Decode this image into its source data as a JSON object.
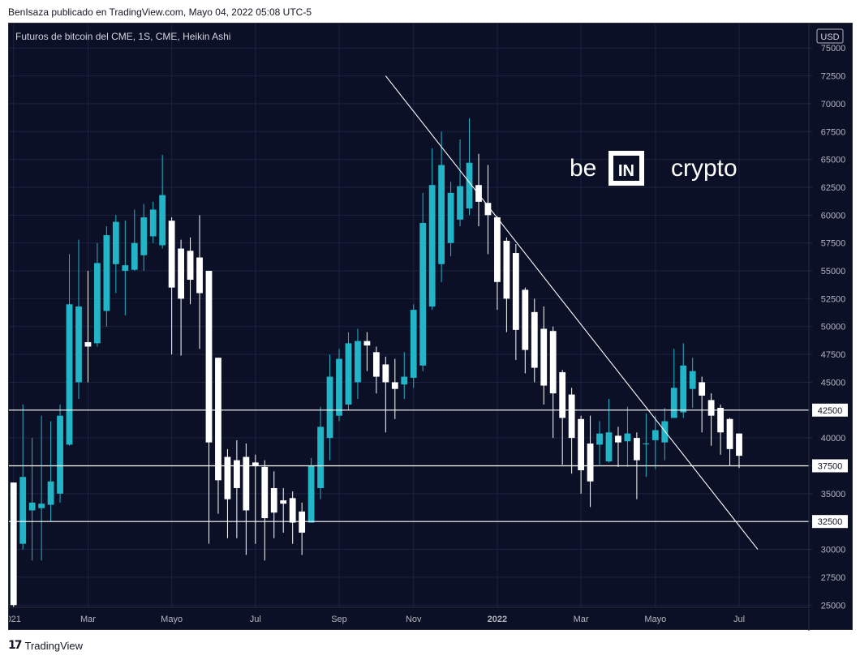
{
  "header": {
    "publish_line": "BenIsaza publicado en TradingView.com, Mayo 04, 2022 05:08 UTC-5"
  },
  "chart_title": "Futuros de bitcoin del CME, 1S, CME, Heikin Ashi",
  "watermark": {
    "left": "be",
    "middle": "IN",
    "right": "crypto"
  },
  "footer": {
    "brand": "TradingView",
    "icon": "tradingview-logo-icon"
  },
  "colors": {
    "background": "#0b1027",
    "up": "#22b5c8",
    "down": "#ffffff",
    "grid": "#1c2340",
    "axis_text": "#b2b5be",
    "line": "#ffffff"
  },
  "chart_data": {
    "type": "candlestick",
    "style": "Heikin Ashi",
    "currency": "USD",
    "y_ticks": [
      25000,
      27500,
      30000,
      32500,
      35000,
      37500,
      40000,
      42500,
      45000,
      47500,
      50000,
      52500,
      55000,
      57500,
      60000,
      62500,
      65000,
      67500,
      70000,
      72500,
      75000
    ],
    "y_tick_labels": [
      "25000",
      "27500",
      "30000",
      "32500",
      "35000",
      "37500",
      "40000",
      "42500",
      "45000",
      "47500",
      "50000",
      "52500",
      "55000",
      "57500",
      "60000",
      "62500",
      "65000",
      "67500",
      "70000",
      "72500",
      "75000"
    ],
    "ylim": [
      24800,
      77200
    ],
    "x_labels": [
      {
        "label": "021",
        "week": 0
      },
      {
        "label": "Mar",
        "week": 8
      },
      {
        "label": "Mayo",
        "week": 17
      },
      {
        "label": "Jul",
        "week": 26
      },
      {
        "label": "Sep",
        "week": 35
      },
      {
        "label": "Nov",
        "week": 43
      },
      {
        "label": "2022",
        "week": 52
      },
      {
        "label": "Mar",
        "week": 61
      },
      {
        "label": "Mayo",
        "week": 69
      },
      {
        "label": "Jul",
        "week": 78
      }
    ],
    "xlim": [
      -0.5,
      85.5
    ],
    "horizontal_lines": [
      {
        "price": 42500,
        "label": "42500"
      },
      {
        "price": 37500,
        "label": "37500"
      },
      {
        "price": 32500,
        "label": "32500"
      }
    ],
    "trendline": [
      {
        "week": 40,
        "price": 72500
      },
      {
        "week": 80,
        "price": 30000
      }
    ],
    "candles": [
      [
        0,
        36000,
        25000,
        36000,
        24800
      ],
      [
        1,
        30500,
        36500,
        43000,
        30000
      ],
      [
        2,
        33500,
        34200,
        40000,
        29000
      ],
      [
        3,
        33700,
        34100,
        42000,
        29000
      ],
      [
        4,
        34000,
        36100,
        41500,
        32500
      ],
      [
        5,
        35000,
        42000,
        43000,
        34200
      ],
      [
        6,
        39400,
        52000,
        56500,
        39300
      ],
      [
        7,
        45000,
        51800,
        57800,
        43500
      ],
      [
        8,
        48600,
        48200,
        55000,
        45000
      ],
      [
        9,
        48500,
        55700,
        57500,
        48200
      ],
      [
        10,
        51400,
        58200,
        59000,
        50000
      ],
      [
        11,
        55600,
        59400,
        60000,
        53000
      ],
      [
        12,
        55000,
        55500,
        59500,
        51000
      ],
      [
        13,
        55100,
        57500,
        60500,
        55000
      ],
      [
        14,
        56400,
        59800,
        61000,
        55000
      ],
      [
        15,
        58100,
        60500,
        61200,
        57500
      ],
      [
        16,
        57300,
        61800,
        65400,
        57000
      ],
      [
        17,
        59500,
        53500,
        59800,
        47500
      ],
      [
        18,
        57000,
        52500,
        57800,
        47400
      ],
      [
        19,
        56800,
        54200,
        58000,
        52000
      ],
      [
        20,
        56200,
        53000,
        60000,
        48000
      ],
      [
        21,
        55000,
        39600,
        55000,
        30500
      ],
      [
        22,
        47200,
        36200,
        47200,
        33200
      ],
      [
        23,
        38300,
        34500,
        39000,
        31000
      ],
      [
        24,
        38000,
        35500,
        39800,
        31000
      ],
      [
        25,
        38300,
        33500,
        39500,
        29500
      ],
      [
        26,
        37800,
        37500,
        38500,
        30500
      ],
      [
        27,
        37400,
        32800,
        38000,
        29000
      ],
      [
        28,
        35500,
        33300,
        37000,
        31000
      ],
      [
        29,
        34400,
        34100,
        35500,
        31500
      ],
      [
        30,
        34600,
        32400,
        35200,
        30500
      ],
      [
        31,
        33400,
        31500,
        34200,
        29500
      ],
      [
        32,
        32400,
        37500,
        38200,
        32400
      ],
      [
        33,
        35500,
        41000,
        42800,
        34500
      ],
      [
        34,
        40000,
        45500,
        47500,
        38000
      ],
      [
        35,
        42000,
        47100,
        48000,
        41500
      ],
      [
        36,
        43000,
        48500,
        49500,
        42500
      ],
      [
        37,
        45000,
        48700,
        49800,
        43500
      ],
      [
        38,
        48700,
        48300,
        49500,
        46000
      ],
      [
        39,
        47700,
        45500,
        48200,
        44000
      ],
      [
        40,
        46600,
        45000,
        47300,
        40500
      ],
      [
        41,
        45000,
        44400,
        47100,
        41700
      ],
      [
        42,
        44800,
        45500,
        47700,
        43500
      ],
      [
        43,
        45400,
        51500,
        52000,
        44500
      ],
      [
        44,
        46500,
        59300,
        62000,
        46000
      ],
      [
        45,
        51800,
        62700,
        66000,
        51500
      ],
      [
        46,
        55600,
        64500,
        67500,
        54000
      ],
      [
        47,
        57500,
        62000,
        63000,
        56300
      ],
      [
        48,
        59600,
        62600,
        66800,
        59000
      ],
      [
        49,
        60600,
        64700,
        68700,
        60000
      ],
      [
        50,
        62700,
        61200,
        65500,
        59000
      ],
      [
        51,
        61100,
        60000,
        64500,
        56500
      ],
      [
        52,
        59800,
        54000,
        59900,
        51500
      ],
      [
        53,
        57700,
        52500,
        58000,
        49500
      ],
      [
        54,
        56600,
        49700,
        57400,
        47000
      ],
      [
        55,
        53300,
        47900,
        53500,
        45800
      ],
      [
        56,
        51300,
        46300,
        52500,
        45000
      ],
      [
        57,
        49800,
        44700,
        51800,
        43000
      ],
      [
        58,
        49600,
        44000,
        50000,
        40000
      ],
      [
        59,
        45900,
        41800,
        46100,
        37600
      ],
      [
        60,
        43900,
        40000,
        44500,
        36800
      ],
      [
        61,
        41700,
        37100,
        42000,
        35000
      ],
      [
        62,
        39500,
        36100,
        42000,
        33800
      ],
      [
        63,
        39400,
        40400,
        41500,
        37600
      ],
      [
        64,
        37900,
        40500,
        43500,
        37800
      ],
      [
        65,
        40200,
        39600,
        41000,
        37400
      ],
      [
        66,
        39700,
        40400,
        42800,
        37400
      ],
      [
        67,
        40000,
        38000,
        40500,
        34500
      ],
      [
        68,
        39500,
        39500,
        42200,
        36500
      ],
      [
        69,
        39800,
        40700,
        42000,
        37200
      ],
      [
        70,
        39600,
        41500,
        42700,
        38000
      ],
      [
        71,
        41800,
        44500,
        48000,
        41800
      ],
      [
        72,
        42300,
        46500,
        48500,
        41800
      ],
      [
        73,
        44400,
        46000,
        47200,
        42700
      ],
      [
        74,
        45000,
        43800,
        45500,
        40500
      ],
      [
        75,
        43400,
        42000,
        44000,
        39300
      ],
      [
        76,
        42700,
        40500,
        43000,
        38500
      ],
      [
        77,
        41700,
        39000,
        41800,
        37500
      ],
      [
        78,
        40400,
        38400,
        40400,
        37300
      ]
    ]
  }
}
